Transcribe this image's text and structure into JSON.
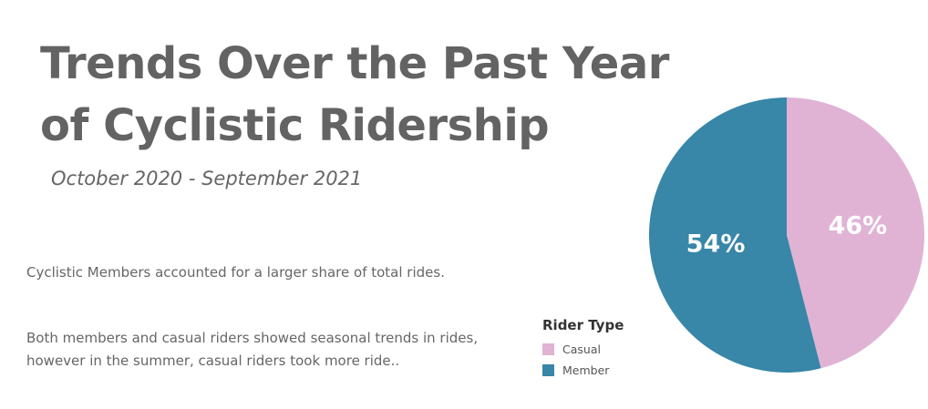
{
  "header": {
    "title": "Trends Over the Past Year of Cyclistic Ridership",
    "subtitle": "October 2020 - September 2021"
  },
  "notes": {
    "para1": "Cyclistic Members accounted for a larger share of total rides.",
    "para2": "Both members and casual riders showed seasonal trends in rides, however in the summer, casual riders took more ride.."
  },
  "legend": {
    "title": "Rider Type",
    "items": [
      {
        "label": "Casual",
        "color": "#e0b3d5"
      },
      {
        "label": "Member",
        "color": "#3886a8"
      }
    ]
  },
  "chart_data": {
    "type": "pie",
    "slices": [
      {
        "name": "Casual",
        "value": 46,
        "label": "46%",
        "color": "#e0b3d5"
      },
      {
        "name": "Member",
        "value": 54,
        "label": "54%",
        "color": "#3886a8"
      }
    ],
    "legend_position": "bottom-left"
  }
}
